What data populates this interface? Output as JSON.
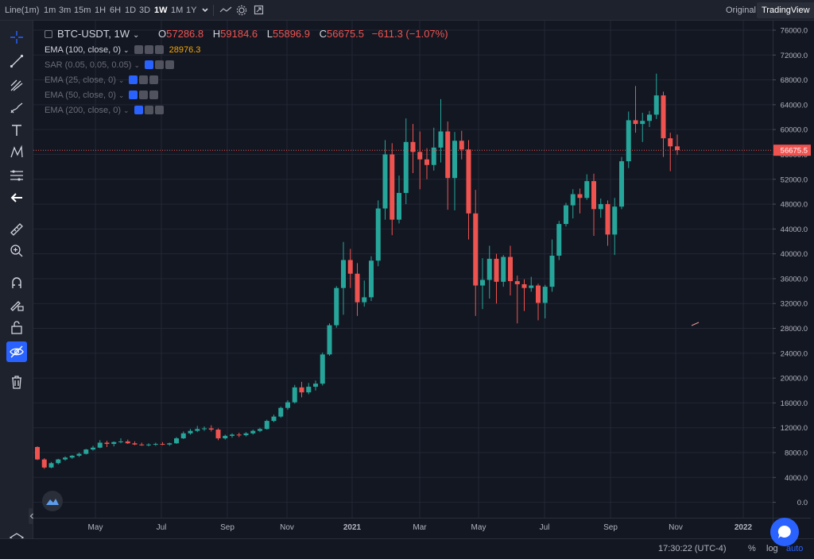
{
  "topbar": {
    "chart_type": "Line(1m)",
    "intervals": [
      "1m",
      "3m",
      "15m",
      "1H",
      "6H",
      "1D",
      "3D",
      "1W",
      "1M",
      "1Y"
    ],
    "active_interval": "1W",
    "original_label": "Original",
    "tradingview_label": "TradingView"
  },
  "legend": {
    "symbol": "BTC-USDT, 1W",
    "o_label": "O",
    "o_value": "57286.8",
    "h_label": "H",
    "h_value": "59184.6",
    "l_label": "L",
    "l_value": "55896.9",
    "c_label": "C",
    "c_value": "56675.5",
    "change": "−611.3 (−1.07%)",
    "indicators": [
      {
        "label": "EMA (100, close, 0)",
        "value": "28976.3"
      },
      {
        "label": "SAR (0.05, 0.05, 0.05)"
      },
      {
        "label": "EMA (25, close, 0)"
      },
      {
        "label": "EMA (50, close, 0)"
      },
      {
        "label": "EMA (200, close, 0)"
      }
    ]
  },
  "price_axis": {
    "labels": [
      "76000.0",
      "72000.0",
      "68000.0",
      "64000.0",
      "60000.0",
      "56000.0",
      "52000.0",
      "48000.0",
      "44000.0",
      "40000.0",
      "36000.0",
      "32000.0",
      "28000.0",
      "24000.0",
      "20000.0",
      "16000.0",
      "12000.0",
      "8000.0",
      "4000.0",
      "0.0"
    ],
    "current_price": "56675.5"
  },
  "time_axis": {
    "labels": [
      "May",
      "Jul",
      "Sep",
      "Nov",
      "2021",
      "Mar",
      "May",
      "Jul",
      "Sep",
      "Nov",
      "2022"
    ]
  },
  "bottombar": {
    "time": "17:30:22 (UTC-4)",
    "percent": "%",
    "log": "log",
    "auto": "auto"
  },
  "colors": {
    "up": "#26a69a",
    "down": "#ef5350",
    "accent": "#2962ff",
    "bg": "#131722"
  },
  "chart_data": {
    "type": "candlestick",
    "title": "",
    "y_range": [
      0,
      76000
    ],
    "candles": [
      [
        8900,
        9000,
        6800,
        6900
      ],
      [
        6900,
        7100,
        5400,
        5600
      ],
      [
        5600,
        6500,
        5500,
        6300
      ],
      [
        6300,
        7000,
        6100,
        6900
      ],
      [
        6900,
        7400,
        6700,
        7200
      ],
      [
        7200,
        7600,
        7000,
        7500
      ],
      [
        7500,
        8000,
        7300,
        7800
      ],
      [
        7800,
        8600,
        7700,
        8500
      ],
      [
        8500,
        9100,
        8300,
        8800
      ],
      [
        8800,
        10000,
        8700,
        9600
      ],
      [
        9600,
        9900,
        8900,
        9400
      ],
      [
        9400,
        9800,
        9000,
        9700
      ],
      [
        9700,
        10300,
        9500,
        9800
      ],
      [
        9800,
        10100,
        9400,
        9500
      ],
      [
        9500,
        9800,
        9200,
        9300
      ],
      [
        9300,
        9600,
        9100,
        9200
      ],
      [
        9200,
        9500,
        9000,
        9300
      ],
      [
        9300,
        9600,
        9100,
        9400
      ],
      [
        9400,
        9700,
        9200,
        9300
      ],
      [
        9300,
        9600,
        9100,
        9500
      ],
      [
        9500,
        10500,
        9400,
        10300
      ],
      [
        10300,
        11400,
        10200,
        11100
      ],
      [
        11100,
        11800,
        10900,
        11500
      ],
      [
        11500,
        12300,
        11300,
        11800
      ],
      [
        11800,
        12200,
        11500,
        11900
      ],
      [
        11900,
        12400,
        11400,
        11700
      ],
      [
        11700,
        11900,
        10000,
        10300
      ],
      [
        10300,
        10900,
        10100,
        10700
      ],
      [
        10700,
        11100,
        10400,
        10900
      ],
      [
        10900,
        11200,
        10500,
        10800
      ],
      [
        10800,
        11300,
        10600,
        11100
      ],
      [
        11100,
        11700,
        10900,
        11500
      ],
      [
        11500,
        12000,
        11300,
        11800
      ],
      [
        11800,
        13300,
        11700,
        13100
      ],
      [
        13100,
        14100,
        12900,
        13800
      ],
      [
        13800,
        15400,
        13600,
        15200
      ],
      [
        15200,
        16400,
        14900,
        16100
      ],
      [
        16100,
        18900,
        15900,
        18500
      ],
      [
        18500,
        19400,
        16900,
        17700
      ],
      [
        17700,
        19200,
        17400,
        18600
      ],
      [
        18600,
        19600,
        18000,
        19100
      ],
      [
        19100,
        24100,
        18800,
        23800
      ],
      [
        23800,
        28800,
        23600,
        28500
      ],
      [
        28500,
        34800,
        28100,
        34500
      ],
      [
        34500,
        41900,
        30200,
        39000
      ],
      [
        39000,
        40800,
        34500,
        36800
      ],
      [
        36800,
        38500,
        30000,
        32200
      ],
      [
        32200,
        35700,
        31500,
        33000
      ],
      [
        33000,
        39600,
        32400,
        38900
      ],
      [
        38900,
        48600,
        38000,
        47300
      ],
      [
        47300,
        58300,
        45500,
        56000
      ],
      [
        56000,
        57800,
        43000,
        45500
      ],
      [
        45500,
        52600,
        44900,
        49800
      ],
      [
        49800,
        61800,
        48000,
        58000
      ],
      [
        58000,
        60900,
        53000,
        56400
      ],
      [
        56400,
        59700,
        50400,
        55200
      ],
      [
        55200,
        57000,
        52000,
        54300
      ],
      [
        54300,
        60300,
        53400,
        57100
      ],
      [
        57100,
        64900,
        54700,
        59700
      ],
      [
        59700,
        61300,
        47100,
        52200
      ],
      [
        52200,
        59600,
        47000,
        58200
      ],
      [
        58200,
        59800,
        55200,
        56800
      ],
      [
        56800,
        58300,
        42300,
        46500
      ],
      [
        46500,
        50300,
        30000,
        34900
      ],
      [
        34900,
        39300,
        31100,
        35800
      ],
      [
        35800,
        41300,
        32800,
        39200
      ],
      [
        39200,
        40000,
        32000,
        35500
      ],
      [
        35500,
        39800,
        34700,
        39500
      ],
      [
        39500,
        41300,
        33300,
        35600
      ],
      [
        35600,
        36500,
        28800,
        35100
      ],
      [
        35100,
        35900,
        30800,
        34500
      ],
      [
        34500,
        36300,
        33900,
        34900
      ],
      [
        34900,
        35200,
        29300,
        32100
      ],
      [
        32100,
        35000,
        29600,
        34700
      ],
      [
        34700,
        42300,
        33900,
        39700
      ],
      [
        39700,
        45300,
        39000,
        44800
      ],
      [
        44800,
        48200,
        44400,
        47800
      ],
      [
        47800,
        50400,
        45700,
        49600
      ],
      [
        49600,
        50500,
        46500,
        49000
      ],
      [
        49000,
        52800,
        48700,
        51700
      ],
      [
        51700,
        52900,
        42900,
        47200
      ],
      [
        47200,
        48900,
        45800,
        48000
      ],
      [
        48000,
        48600,
        41300,
        43100
      ],
      [
        43100,
        49000,
        39800,
        47600
      ],
      [
        47600,
        55600,
        47200,
        54900
      ],
      [
        54900,
        62900,
        53800,
        61500
      ],
      [
        61500,
        67000,
        59500,
        60900
      ],
      [
        60900,
        62700,
        58000,
        61400
      ],
      [
        61400,
        63000,
        60400,
        62400
      ],
      [
        62400,
        69000,
        61700,
        65500
      ],
      [
        65500,
        66100,
        55600,
        58600
      ],
      [
        58600,
        59500,
        53300,
        57300
      ],
      [
        57300,
        59200,
        55900,
        56700
      ]
    ]
  }
}
